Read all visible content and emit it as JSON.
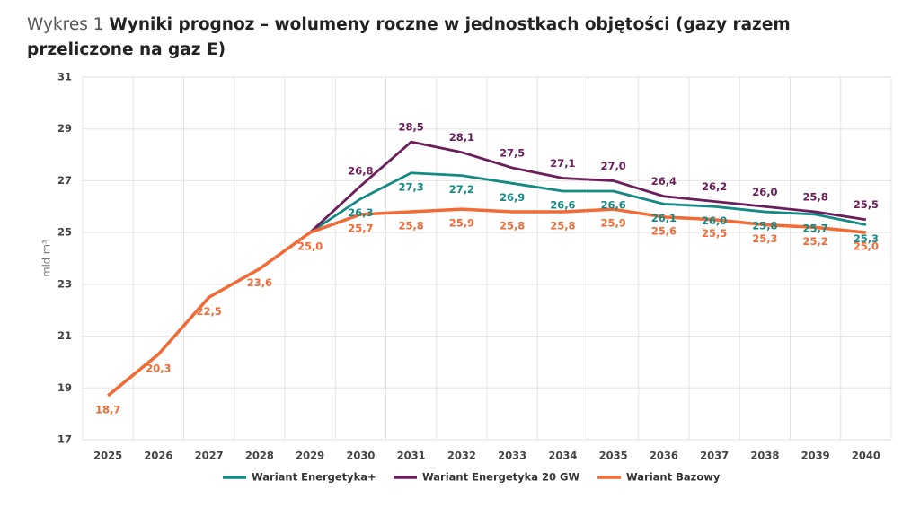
{
  "chart_data": {
    "type": "line",
    "title_prefix": "Wykres 1",
    "title": "Wyniki prognoz – wolumeny roczne w jednostkach objętości (gazy razem przeliczone na gaz E)",
    "y_label": "mld m³",
    "categories": [
      "2025",
      "2026",
      "2027",
      "2028",
      "2029",
      "2030",
      "2031",
      "2032",
      "2033",
      "2034",
      "2035",
      "2036",
      "2037",
      "2038",
      "2039",
      "2040"
    ],
    "ylim": [
      17,
      31
    ],
    "yticks": [
      17,
      19,
      21,
      23,
      25,
      27,
      29,
      31
    ],
    "grid": true,
    "series": [
      {
        "name": "Wariant Energetyka+",
        "color": "#138a84",
        "label_side": "below",
        "values": [
          null,
          null,
          null,
          null,
          25.0,
          26.3,
          27.3,
          27.2,
          26.9,
          26.6,
          26.6,
          26.1,
          26.0,
          25.8,
          25.7,
          25.3
        ],
        "value_labels": [
          null,
          null,
          null,
          null,
          null,
          "26,3",
          "27,3",
          "27,2",
          "26,9",
          "26,6",
          "26,6",
          "26,1",
          "26,0",
          "25,8",
          "25,7",
          "25,3"
        ]
      },
      {
        "name": "Wariant Energetyka 20 GW",
        "color": "#6b1e5b",
        "label_side": "above",
        "values": [
          null,
          null,
          null,
          null,
          25.0,
          26.8,
          28.5,
          28.1,
          27.5,
          27.1,
          27.0,
          26.4,
          26.2,
          26.0,
          25.8,
          25.5
        ],
        "value_labels": [
          null,
          null,
          null,
          null,
          null,
          "26,8",
          "28,5",
          "28,1",
          "27,5",
          "27,1",
          "27,0",
          "26,4",
          "26,2",
          "26,0",
          "25,8",
          "25,5"
        ]
      },
      {
        "name": "Wariant Bazowy",
        "color": "#f26a35",
        "label_side": "below",
        "values": [
          18.7,
          20.3,
          22.5,
          23.6,
          25.0,
          25.7,
          25.8,
          25.9,
          25.8,
          25.8,
          25.9,
          25.6,
          25.5,
          25.3,
          25.2,
          25.0
        ],
        "value_labels": [
          "18,7",
          "20,3",
          "22,5",
          "23,6",
          "25,0",
          "25,7",
          "25,8",
          "25,9",
          "25,8",
          "25,8",
          "25,9",
          "25,6",
          "25,5",
          "25,3",
          "25,2",
          "25,0"
        ]
      }
    ]
  }
}
